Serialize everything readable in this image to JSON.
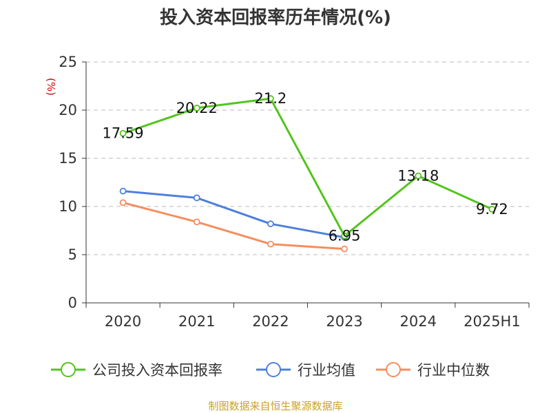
{
  "chart_data": {
    "type": "line",
    "title": "投入资本回报率历年情况(%)",
    "unit_label": "(%)",
    "categories": [
      "2020",
      "2021",
      "2022",
      "2023",
      "2024",
      "2025H1"
    ],
    "ylim": [
      0,
      25
    ],
    "yticks": [
      "0",
      "5",
      "10",
      "15",
      "20",
      "25"
    ],
    "grid": true,
    "legend_position": "bottom",
    "series": [
      {
        "name": "公司投入资本回报率",
        "color": "#52c41a",
        "values": [
          17.59,
          20.22,
          21.2,
          6.95,
          13.18,
          9.72
        ],
        "labels": [
          "17.59",
          "20.22",
          "21.2",
          "6.95",
          "13.18",
          "9.72"
        ]
      },
      {
        "name": "行业均值",
        "color": "#4e7fdc",
        "values": [
          11.6,
          10.9,
          8.2,
          6.8,
          null,
          null
        ]
      },
      {
        "name": "行业中位数",
        "color": "#f58d5e",
        "values": [
          10.4,
          8.4,
          6.1,
          5.6,
          null,
          null
        ]
      }
    ],
    "source": "制图数据来自恒生聚源数据库"
  }
}
